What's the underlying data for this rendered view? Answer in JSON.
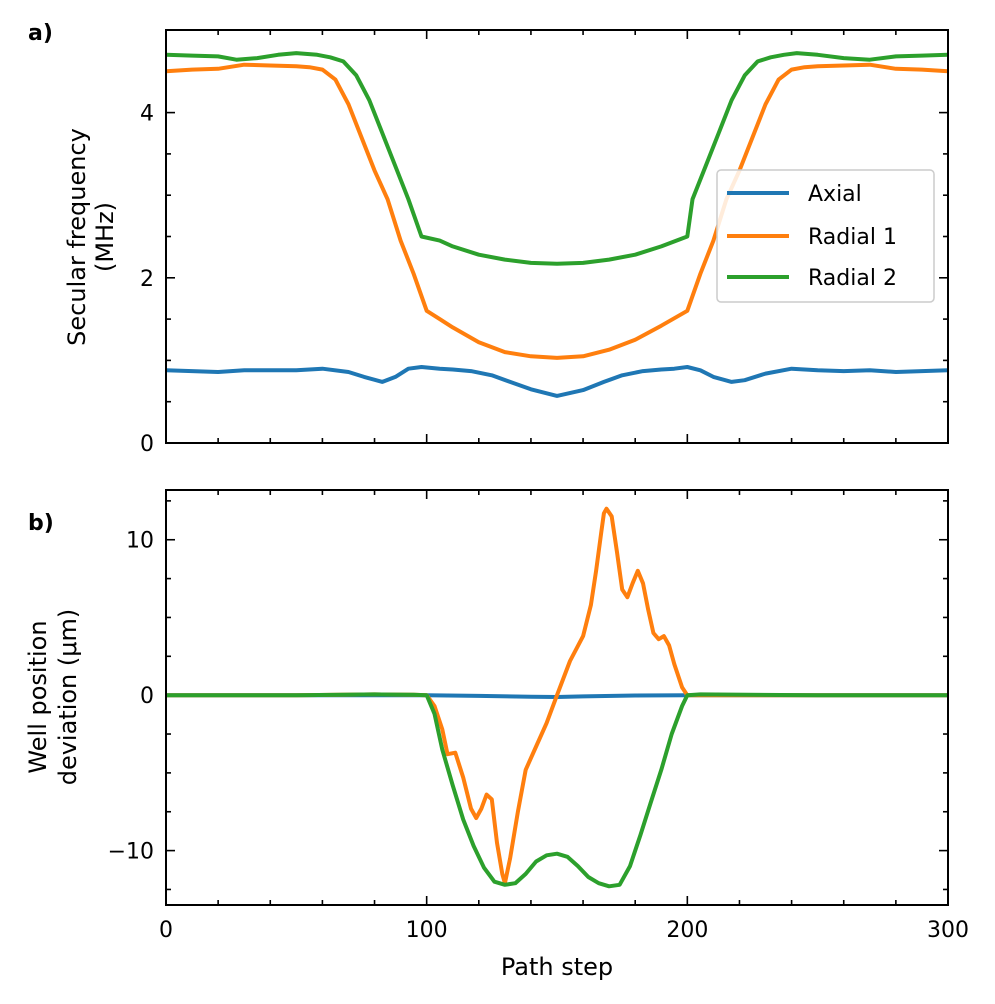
{
  "colors": {
    "axial": "#1f77b4",
    "radial1": "#ff7f0e",
    "radial2": "#2ca02c"
  },
  "xlabel": "Path step",
  "chart_data": [
    {
      "type": "line",
      "panel_label": "a)",
      "ylabel_lines": [
        "Secular frequency",
        "(MHz)"
      ],
      "xlim": [
        0,
        300
      ],
      "ylim": [
        0,
        5
      ],
      "xticks": [
        0,
        100,
        200,
        300
      ],
      "yticks": [
        0,
        2,
        4
      ],
      "yticks_labels": [
        "0",
        "2",
        "4"
      ],
      "legend": {
        "placement": "center-right",
        "entries": [
          "Axial",
          "Radial 1",
          "Radial 2"
        ]
      },
      "series": [
        {
          "name": "Axial",
          "color": "#1f77b4",
          "x": [
            0,
            10,
            20,
            30,
            40,
            50,
            60,
            70,
            76,
            83,
            88,
            93,
            98,
            105,
            110,
            117,
            125,
            132,
            140,
            150,
            160,
            168,
            175,
            183,
            190,
            195,
            200,
            205,
            210,
            217,
            222,
            230,
            240,
            250,
            260,
            270,
            280,
            290,
            300
          ],
          "y": [
            0.88,
            0.87,
            0.86,
            0.88,
            0.88,
            0.88,
            0.9,
            0.86,
            0.8,
            0.74,
            0.8,
            0.9,
            0.92,
            0.9,
            0.89,
            0.87,
            0.82,
            0.74,
            0.65,
            0.57,
            0.64,
            0.74,
            0.82,
            0.87,
            0.89,
            0.9,
            0.92,
            0.88,
            0.8,
            0.74,
            0.76,
            0.84,
            0.9,
            0.88,
            0.87,
            0.88,
            0.86,
            0.87,
            0.88
          ]
        },
        {
          "name": "Radial 1",
          "color": "#ff7f0e",
          "x": [
            0,
            10,
            20,
            30,
            40,
            50,
            55,
            60,
            65,
            70,
            75,
            80,
            85,
            90,
            95,
            100,
            105,
            110,
            120,
            130,
            140,
            150,
            160,
            170,
            180,
            190,
            200,
            205,
            210,
            215,
            220,
            225,
            230,
            235,
            240,
            245,
            250,
            260,
            270,
            280,
            290,
            300
          ],
          "y": [
            4.5,
            4.52,
            4.53,
            4.58,
            4.57,
            4.56,
            4.55,
            4.52,
            4.4,
            4.1,
            3.7,
            3.3,
            2.95,
            2.45,
            2.05,
            1.6,
            1.5,
            1.4,
            1.22,
            1.1,
            1.05,
            1.03,
            1.05,
            1.13,
            1.25,
            1.42,
            1.6,
            2.05,
            2.45,
            2.95,
            3.3,
            3.7,
            4.1,
            4.4,
            4.52,
            4.55,
            4.56,
            4.57,
            4.58,
            4.53,
            4.52,
            4.5
          ]
        },
        {
          "name": "Radial 2",
          "color": "#2ca02c",
          "x": [
            0,
            10,
            20,
            27,
            35,
            43,
            50,
            58,
            63,
            68,
            73,
            78,
            83,
            88,
            93,
            98,
            105,
            110,
            120,
            130,
            140,
            150,
            160,
            170,
            180,
            190,
            200,
            202,
            207,
            212,
            217,
            222,
            227,
            232,
            237,
            242,
            250,
            260,
            270,
            280,
            290,
            300
          ],
          "y": [
            4.7,
            4.69,
            4.68,
            4.64,
            4.66,
            4.7,
            4.72,
            4.7,
            4.67,
            4.62,
            4.45,
            4.15,
            3.75,
            3.35,
            2.95,
            2.5,
            2.45,
            2.38,
            2.28,
            2.22,
            2.18,
            2.17,
            2.18,
            2.22,
            2.28,
            2.38,
            2.5,
            2.95,
            3.35,
            3.75,
            4.15,
            4.45,
            4.62,
            4.67,
            4.7,
            4.72,
            4.7,
            4.66,
            4.64,
            4.68,
            4.69,
            4.7
          ]
        }
      ]
    },
    {
      "type": "line",
      "panel_label": "b)",
      "ylabel_lines": [
        "Well position",
        "deviation (μm)"
      ],
      "xlim": [
        0,
        300
      ],
      "ylim": [
        -13.5,
        13.2
      ],
      "xticks": [
        0,
        100,
        200,
        300
      ],
      "xticks_labels": [
        "0",
        "100",
        "200",
        "300"
      ],
      "yticks": [
        -10,
        0,
        10
      ],
      "yticks_labels": [
        "−10",
        "0",
        "10"
      ],
      "series": [
        {
          "name": "Axial",
          "color": "#1f77b4",
          "x": [
            0,
            50,
            100,
            120,
            140,
            150,
            160,
            180,
            200,
            220,
            250,
            300
          ],
          "y": [
            0,
            0,
            0,
            -0.05,
            -0.1,
            -0.12,
            -0.08,
            -0.02,
            0,
            0,
            0,
            0
          ]
        },
        {
          "name": "Radial 1",
          "color": "#ff7f0e",
          "x": [
            0,
            50,
            80,
            95,
            100,
            103,
            106,
            108,
            111,
            114,
            117,
            119,
            121,
            123,
            125,
            127,
            129,
            130,
            132,
            135,
            138,
            142,
            146,
            150,
            155,
            160,
            163,
            165,
            167,
            168,
            169,
            171,
            173,
            175,
            177,
            179,
            181,
            183,
            185,
            187,
            189,
            191,
            193,
            195,
            198,
            200,
            205,
            250,
            300
          ],
          "y": [
            0,
            0,
            0.05,
            0.03,
            0,
            -0.7,
            -2.2,
            -3.8,
            -3.7,
            -5.3,
            -7.3,
            -7.9,
            -7.3,
            -6.4,
            -6.7,
            -9.5,
            -11.5,
            -12.1,
            -10.5,
            -7.5,
            -4.8,
            -3.3,
            -1.8,
            0,
            2.2,
            3.8,
            5.8,
            8,
            10.5,
            11.7,
            12,
            11.5,
            9.2,
            6.8,
            6.3,
            7.2,
            8,
            7.2,
            5.5,
            4,
            3.6,
            3.8,
            3.2,
            2,
            0.5,
            0,
            0,
            0,
            0
          ]
        },
        {
          "name": "Radial 2",
          "color": "#2ca02c",
          "x": [
            0,
            50,
            80,
            95,
            100,
            103,
            106,
            110,
            114,
            118,
            122,
            126,
            130,
            134,
            138,
            142,
            146,
            150,
            154,
            158,
            162,
            166,
            170,
            174,
            178,
            182,
            186,
            190,
            194,
            198,
            200,
            205,
            250,
            300
          ],
          "y": [
            0,
            0,
            0.05,
            0.03,
            0,
            -1.2,
            -3.5,
            -5.8,
            -8,
            -9.7,
            -11.1,
            -12,
            -12.2,
            -12.1,
            -11.5,
            -10.7,
            -10.3,
            -10.2,
            -10.4,
            -11,
            -11.7,
            -12.1,
            -12.3,
            -12.2,
            -11,
            -9,
            -6.9,
            -4.8,
            -2.5,
            -0.7,
            0,
            0.05,
            0,
            0
          ]
        }
      ]
    }
  ]
}
